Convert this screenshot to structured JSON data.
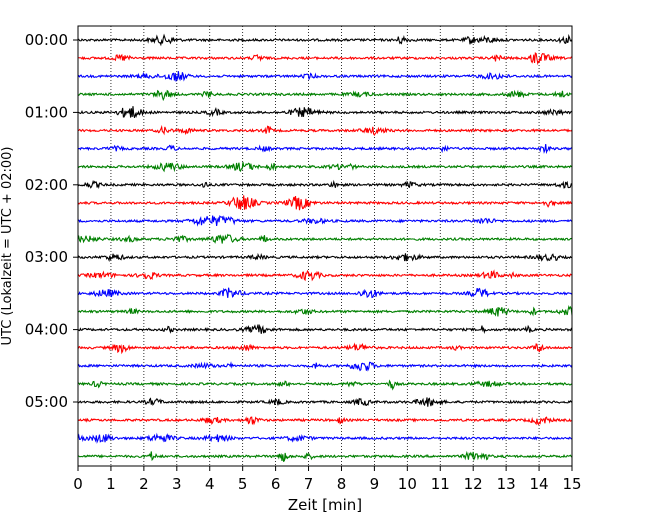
{
  "chart_data": {
    "type": "line",
    "xlabel": "Zeit  [min]",
    "ylabel": "UTC (Lokalzeit = UTC + 02:00)",
    "x_range": [
      0,
      15
    ],
    "x_ticks": [
      0,
      1,
      2,
      3,
      4,
      5,
      6,
      7,
      8,
      9,
      10,
      11,
      12,
      13,
      14,
      15
    ],
    "x_tick_labels": [
      "0",
      "1",
      "2",
      "3",
      "4",
      "5",
      "6",
      "7",
      "8",
      "9",
      "10",
      "11",
      "12",
      "13",
      "14",
      "15"
    ],
    "row_interval_min": 15,
    "rows": 24,
    "row_start_times": [
      "00:00",
      "00:15",
      "00:30",
      "00:45",
      "01:00",
      "01:15",
      "01:30",
      "01:45",
      "02:00",
      "02:15",
      "02:30",
      "02:45",
      "03:00",
      "03:15",
      "03:30",
      "03:45",
      "04:00",
      "04:15",
      "04:30",
      "04:45",
      "05:00",
      "05:15",
      "05:30",
      "05:45"
    ],
    "y_tick_labels": [
      "00:00",
      "01:00",
      "02:00",
      "03:00",
      "04:00",
      "05:00"
    ],
    "y_tick_rows": [
      0,
      4,
      8,
      12,
      16,
      20
    ],
    "series_colors": [
      "#000000",
      "#ff0000",
      "#0000ff",
      "#008000"
    ],
    "grid": "vertical dotted at each minute",
    "trace": "seismogram (noise)"
  }
}
